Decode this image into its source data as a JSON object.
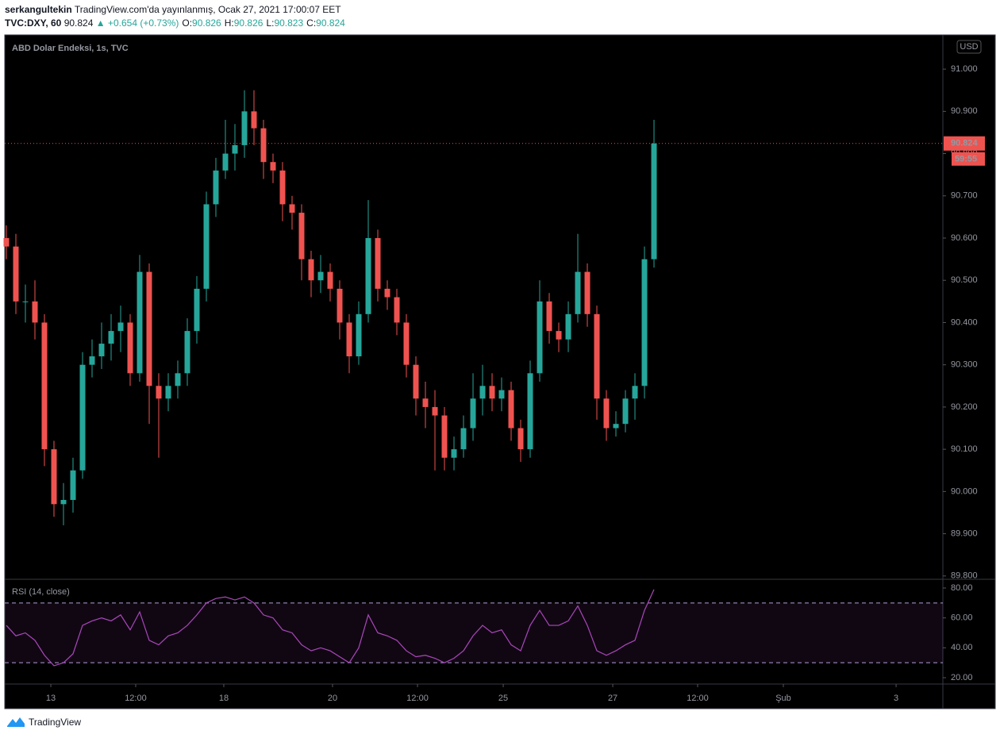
{
  "header": {
    "author": "serkangultekin",
    "published": "TradingView.com'da yayınlanmış, Ocak 27, 2021 17:00:07 EET",
    "symbol": "TVC:DXY, 60",
    "price": 90.824,
    "change": "▲ +0.654 (+0.73%)",
    "ohlc": [
      {
        "label": "O:",
        "value": 90.826
      },
      {
        "label": "H:",
        "value": 90.826
      },
      {
        "label": "L:",
        "value": 90.823
      },
      {
        "label": "C:",
        "value": 90.824
      }
    ]
  },
  "footer": {
    "brand": "TradingView"
  },
  "chart_data": {
    "type": "candlestick",
    "title": "ABD Dolar Endeksi, 1s, TVC",
    "currency": "USD",
    "up_color": "#26a69a",
    "down_color": "#ef5350",
    "open": [
      90.6,
      90.58,
      90.45,
      90.45,
      90.4,
      90.1,
      89.97,
      89.98,
      90.05,
      90.3,
      90.32,
      90.35,
      90.38,
      90.4,
      90.28,
      90.52,
      90.25,
      90.22,
      90.25,
      90.28,
      90.38,
      90.48,
      90.68,
      90.76,
      90.8,
      90.82,
      90.9,
      90.86,
      90.78,
      90.76,
      90.68,
      90.66,
      90.55,
      90.5,
      90.52,
      90.48,
      90.4,
      90.32,
      90.42,
      90.6,
      90.48,
      90.46,
      90.4,
      90.3,
      90.22,
      90.2,
      90.18,
      90.08,
      90.1,
      90.15,
      90.22,
      90.25,
      90.22,
      90.24,
      90.15,
      90.1,
      90.28,
      90.45,
      90.38,
      90.36,
      90.42,
      90.52,
      90.42,
      90.22,
      90.15,
      90.16,
      90.22,
      90.25,
      90.55
    ],
    "high": [
      90.63,
      90.61,
      90.49,
      90.5,
      90.42,
      90.12,
      90.02,
      90.08,
      90.33,
      90.36,
      90.4,
      90.42,
      90.44,
      90.42,
      90.56,
      90.54,
      90.28,
      90.28,
      90.31,
      90.41,
      90.51,
      90.71,
      90.79,
      90.88,
      90.87,
      90.95,
      90.95,
      90.88,
      90.8,
      90.78,
      90.7,
      90.68,
      90.57,
      90.56,
      90.54,
      90.5,
      90.42,
      90.45,
      90.69,
      90.62,
      90.5,
      90.48,
      90.42,
      90.32,
      90.26,
      90.24,
      90.2,
      90.13,
      90.18,
      90.28,
      90.3,
      90.28,
      90.27,
      90.26,
      90.17,
      90.31,
      90.5,
      90.47,
      90.4,
      90.45,
      90.61,
      90.54,
      90.44,
      90.24,
      90.19,
      90.24,
      90.28,
      90.58,
      90.88
    ],
    "low": [
      90.55,
      90.42,
      90.4,
      90.36,
      90.06,
      89.94,
      89.92,
      89.95,
      90.03,
      90.27,
      90.29,
      90.31,
      90.33,
      90.25,
      90.26,
      90.16,
      90.08,
      90.19,
      90.22,
      90.25,
      90.35,
      90.45,
      90.65,
      90.74,
      90.76,
      90.79,
      90.82,
      90.74,
      90.73,
      90.64,
      90.62,
      90.5,
      90.46,
      90.47,
      90.45,
      90.36,
      90.28,
      90.3,
      90.4,
      90.45,
      90.43,
      90.37,
      90.27,
      90.18,
      90.15,
      90.05,
      90.05,
      90.05,
      90.08,
      90.12,
      90.18,
      90.19,
      90.19,
      90.12,
      90.07,
      90.08,
      90.26,
      90.35,
      90.33,
      90.33,
      90.4,
      90.39,
      90.17,
      90.12,
      90.13,
      90.14,
      90.17,
      90.22,
      90.53
    ],
    "close": [
      90.58,
      90.45,
      90.45,
      90.4,
      90.1,
      89.97,
      89.98,
      90.05,
      90.3,
      90.32,
      90.35,
      90.38,
      90.4,
      90.28,
      90.52,
      90.25,
      90.22,
      90.25,
      90.28,
      90.38,
      90.48,
      90.68,
      90.76,
      90.8,
      90.82,
      90.9,
      90.86,
      90.78,
      90.76,
      90.68,
      90.66,
      90.55,
      90.5,
      90.52,
      90.48,
      90.4,
      90.32,
      90.42,
      90.6,
      90.48,
      90.46,
      90.4,
      90.3,
      90.22,
      90.2,
      90.18,
      90.08,
      90.1,
      90.15,
      90.22,
      90.25,
      90.22,
      90.24,
      90.15,
      90.1,
      90.28,
      90.45,
      90.38,
      90.36,
      90.42,
      90.52,
      90.42,
      90.22,
      90.15,
      90.16,
      90.22,
      90.25,
      90.55,
      90.824
    ],
    "ylim": [
      89.794,
      91.081
    ],
    "yticks": [
      {
        "value": 89.8,
        "label": "89.800"
      },
      {
        "value": 89.9,
        "label": "89.900"
      },
      {
        "value": 90.0,
        "label": "90.000"
      },
      {
        "value": 90.1,
        "label": "90.100"
      },
      {
        "value": 90.2,
        "label": "90.200"
      },
      {
        "value": 90.3,
        "label": "90.300"
      },
      {
        "value": 90.4,
        "label": "90.400"
      },
      {
        "value": 90.5,
        "label": "90.500"
      },
      {
        "value": 90.6,
        "label": "90.600"
      },
      {
        "value": 90.7,
        "label": "90.700"
      },
      {
        "value": 90.8,
        "label": "90.800"
      },
      {
        "value": 90.9,
        "label": "90.900"
      },
      {
        "value": 91.0,
        "label": "91.000"
      }
    ],
    "xlim": [
      0,
      98.33
    ],
    "xticks": [
      {
        "value": 4.67,
        "label": "13"
      },
      {
        "value": 13.58,
        "label": "12:00"
      },
      {
        "value": 22.83,
        "label": "18"
      },
      {
        "value": 34.25,
        "label": "20"
      },
      {
        "value": 43.17,
        "label": "12:00"
      },
      {
        "value": 52.17,
        "label": "25"
      },
      {
        "value": 63.67,
        "label": "27"
      },
      {
        "value": 72.58,
        "label": "12:00"
      },
      {
        "value": 81.58,
        "label": "Şub"
      },
      {
        "value": 93.42,
        "label": "3"
      }
    ],
    "last_price": 90.824,
    "countdown": "59:55",
    "rsi": {
      "title": "RSI (14, close)",
      "color": "#ab47bc",
      "values": [
        55,
        48,
        50,
        45,
        35,
        28,
        30,
        36,
        55,
        58,
        60,
        58,
        62,
        52,
        64,
        45,
        42,
        48,
        50,
        55,
        62,
        70,
        73,
        74,
        72,
        74,
        70,
        62,
        60,
        52,
        50,
        42,
        38,
        40,
        38,
        34,
        30,
        40,
        62,
        50,
        48,
        45,
        38,
        34,
        35,
        33,
        30,
        33,
        38,
        48,
        55,
        50,
        52,
        42,
        38,
        55,
        65,
        55,
        55,
        58,
        68,
        55,
        38,
        35,
        38,
        42,
        45,
        65,
        79
      ],
      "ylim": [
        15.75,
        85.3
      ],
      "yticks": [
        {
          "value": 20,
          "label": "20.00"
        },
        {
          "value": 40,
          "label": "40.00"
        },
        {
          "value": 60,
          "label": "60.00"
        },
        {
          "value": 80,
          "label": "80.00"
        }
      ],
      "bands": [
        30,
        70
      ]
    }
  }
}
